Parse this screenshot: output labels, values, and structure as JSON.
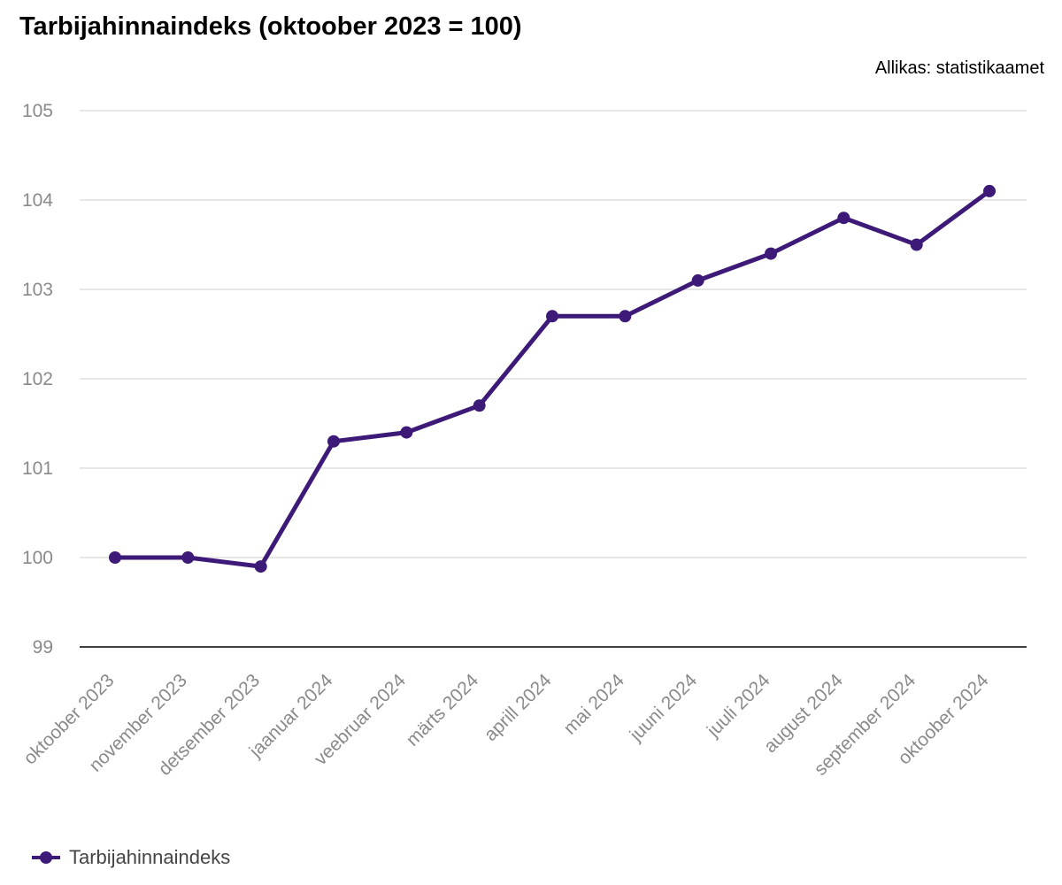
{
  "chart_data": {
    "type": "line",
    "title": "Tarbijahinnaindeks (oktoober 2023 = 100)",
    "source": "Allikas: statistikaamet",
    "xlabel": "",
    "ylabel": "",
    "categories": [
      "oktoober 2023",
      "november 2023",
      "detsember 2023",
      "jaanuar 2024",
      "veebruar 2024",
      "märts 2024",
      "aprill 2024",
      "mai 2024",
      "juuni 2024",
      "juuli 2024",
      "august 2024",
      "september 2024",
      "oktoober 2024"
    ],
    "series": [
      {
        "name": "Tarbijahinnaindeks",
        "color": "#3d1a78",
        "values": [
          100.0,
          100.0,
          99.9,
          101.3,
          101.4,
          101.7,
          102.7,
          102.7,
          103.1,
          103.4,
          103.8,
          103.5,
          104.1
        ]
      }
    ],
    "ylim": [
      99,
      105
    ],
    "yticks": [
      "99",
      "100",
      "101",
      "102",
      "103",
      "104",
      "105"
    ],
    "grid": true,
    "legend_position": "bottom-left",
    "grid_color": "#d6d6d6",
    "axis_color": "#000000"
  }
}
